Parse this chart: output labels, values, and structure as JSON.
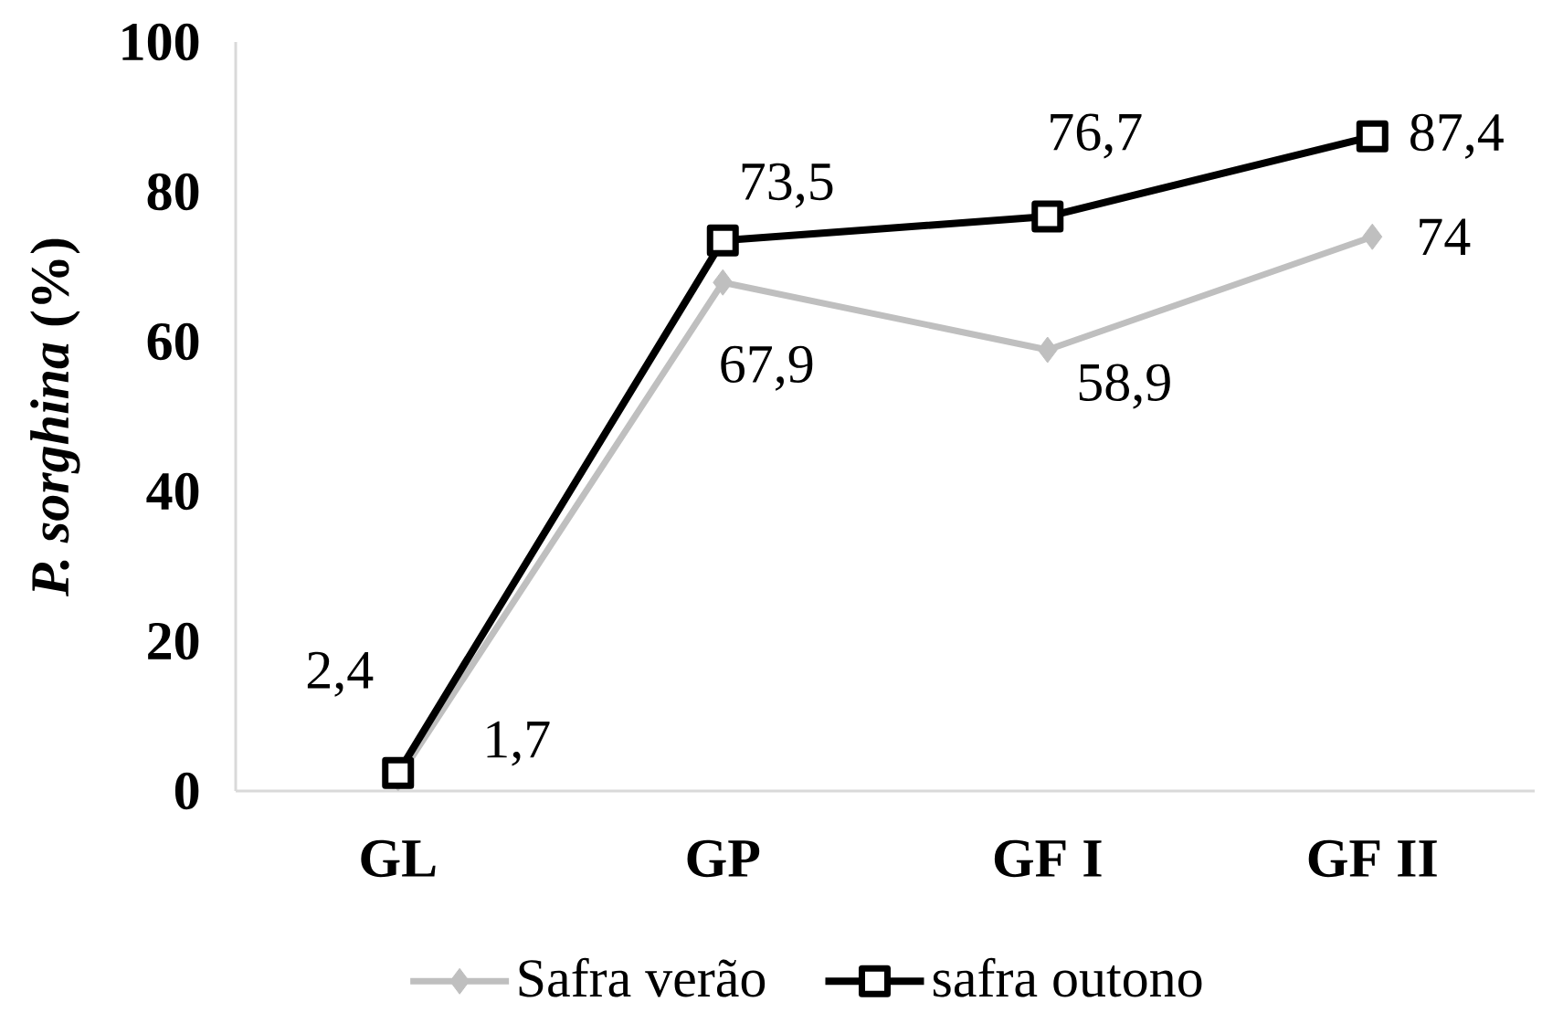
{
  "chart_data": {
    "type": "line",
    "ylabel": "*P. sorghina* (%)",
    "categories": [
      "GL",
      "GP",
      "GF I",
      "GF II"
    ],
    "series": [
      {
        "name": "Safra verão",
        "color": "#bfbfbf",
        "marker": "diamond",
        "values": [
          1.7,
          67.9,
          58.9,
          74
        ],
        "value_labels": [
          "1,7",
          "67,9",
          "58,9",
          "74"
        ]
      },
      {
        "name": "safra outono",
        "color": "#000000",
        "marker": "square",
        "values": [
          2.4,
          73.5,
          76.7,
          87.4
        ],
        "value_labels": [
          "2,4",
          "73,5",
          "76,7",
          "87,4"
        ]
      }
    ],
    "ylim": [
      0,
      100
    ],
    "yticks": [
      0,
      20,
      40,
      60,
      80,
      100
    ],
    "legend": "bottom",
    "line_style": "solid"
  }
}
